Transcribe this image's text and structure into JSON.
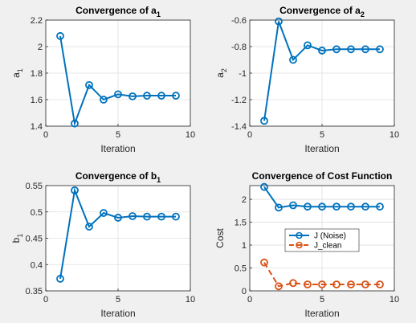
{
  "chart_data": [
    {
      "type": "line",
      "title": "Convergence of a",
      "title_sub": "1",
      "xlabel": "Iteration",
      "ylabel": "a",
      "ylabel_sub": "1",
      "xlim": [
        0,
        10
      ],
      "ylim": [
        1.4,
        2.2
      ],
      "xticks": [
        0,
        5,
        10
      ],
      "yticks": [
        1.4,
        1.6,
        1.8,
        2,
        2.2
      ],
      "grid": true,
      "series": [
        {
          "x": [
            1,
            2,
            3,
            4,
            5,
            6,
            7,
            8,
            9
          ],
          "values": [
            2.08,
            1.42,
            1.71,
            1.6,
            1.64,
            1.625,
            1.63,
            1.63,
            1.63
          ],
          "color": "#0072BD",
          "style": "solid"
        }
      ]
    },
    {
      "type": "line",
      "title": "Convergence of a",
      "title_sub": "2",
      "xlabel": "Iteration",
      "ylabel": "a",
      "ylabel_sub": "2",
      "xlim": [
        0,
        10
      ],
      "ylim": [
        -1.4,
        -0.6
      ],
      "xticks": [
        0,
        5,
        10
      ],
      "yticks": [
        -1.4,
        -1.2,
        -1,
        -0.8,
        -0.6
      ],
      "grid": true,
      "series": [
        {
          "x": [
            1,
            2,
            3,
            4,
            5,
            6,
            7,
            8,
            9
          ],
          "values": [
            -1.36,
            -0.61,
            -0.9,
            -0.79,
            -0.83,
            -0.82,
            -0.82,
            -0.82,
            -0.82
          ],
          "color": "#0072BD",
          "style": "solid"
        }
      ]
    },
    {
      "type": "line",
      "title": "Convergence of b",
      "title_sub": "1",
      "xlabel": "Iteration",
      "ylabel": "b",
      "ylabel_sub": "1",
      "xlim": [
        0,
        10
      ],
      "ylim": [
        0.35,
        0.55
      ],
      "xticks": [
        0,
        5,
        10
      ],
      "yticks": [
        0.35,
        0.4,
        0.45,
        0.5,
        0.55
      ],
      "grid": true,
      "series": [
        {
          "x": [
            1,
            2,
            3,
            4,
            5,
            6,
            7,
            8,
            9
          ],
          "values": [
            0.373,
            0.541,
            0.472,
            0.498,
            0.489,
            0.492,
            0.491,
            0.491,
            0.491
          ],
          "color": "#0072BD",
          "style": "solid"
        }
      ]
    },
    {
      "type": "line",
      "title": "Convergence of Cost Function",
      "title_sub": "",
      "xlabel": "Iteration",
      "ylabel": "Cost",
      "ylabel_sub": "",
      "xlim": [
        0,
        10
      ],
      "ylim": [
        0,
        2.3
      ],
      "xticks": [
        0,
        5,
        10
      ],
      "yticks": [
        0,
        0.5,
        1,
        1.5,
        2
      ],
      "grid": true,
      "legend": "center",
      "series": [
        {
          "name": "J (Noise)",
          "x": [
            1,
            2,
            3,
            4,
            5,
            6,
            7,
            8,
            9
          ],
          "values": [
            2.27,
            1.82,
            1.87,
            1.84,
            1.84,
            1.84,
            1.84,
            1.84,
            1.84
          ],
          "color": "#0072BD",
          "style": "solid"
        },
        {
          "name": "J_clean",
          "x": [
            1,
            2,
            3,
            4,
            5,
            6,
            7,
            8,
            9
          ],
          "values": [
            0.62,
            0.1,
            0.17,
            0.14,
            0.14,
            0.14,
            0.14,
            0.14,
            0.14
          ],
          "color": "#D95319",
          "style": "dashed"
        }
      ]
    }
  ]
}
